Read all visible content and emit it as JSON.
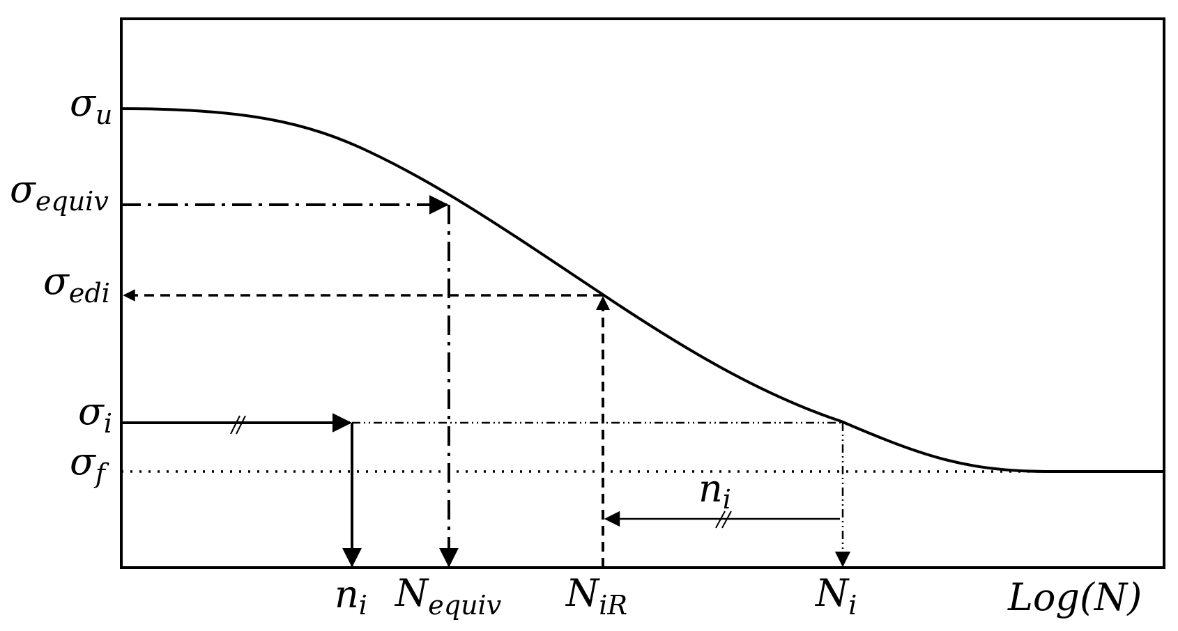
{
  "colors": {
    "stroke": "#000000",
    "background": "#ffffff"
  },
  "y_labels": {
    "sigma_u": {
      "symbol": "σ",
      "sub": "u"
    },
    "sigma_equiv": {
      "symbol": "σ",
      "sub": "equiv"
    },
    "sigma_edi": {
      "symbol": "σ",
      "sub": "edi"
    },
    "sigma_i": {
      "symbol": "σ",
      "sub": "i"
    },
    "sigma_f": {
      "symbol": "σ",
      "sub": "f"
    }
  },
  "x_labels": {
    "n_i": {
      "symbol": "n",
      "sub": "i"
    },
    "N_equiv": {
      "symbol": "N",
      "sub": "equiv"
    },
    "N_iR": {
      "symbol": "N",
      "sub": "iR"
    },
    "N_i": {
      "symbol": "N",
      "sub": "i"
    },
    "axis": "Log(N)"
  },
  "annotations": {
    "n_i_span": {
      "symbol": "n",
      "sub": "i"
    }
  }
}
